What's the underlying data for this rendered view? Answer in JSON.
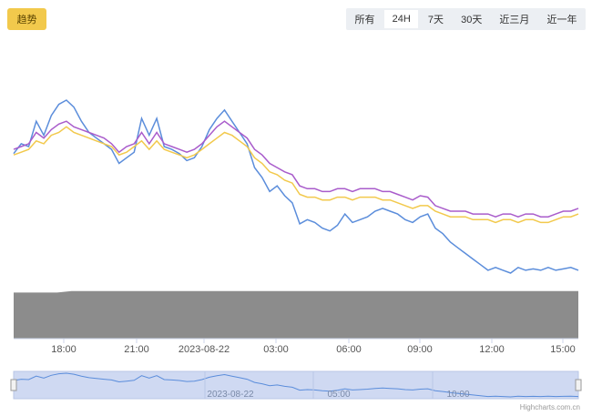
{
  "toolbar": {
    "trend_label": "趋势",
    "ranges": [
      {
        "label": "所有",
        "active": false
      },
      {
        "label": "24H",
        "active": true
      },
      {
        "label": "7天",
        "active": false
      },
      {
        "label": "30天",
        "active": false
      },
      {
        "label": "近三月",
        "active": false
      },
      {
        "label": "近一年",
        "active": false
      }
    ]
  },
  "chart_data": {
    "type": "line",
    "title": "",
    "xlabel": "",
    "ylabel": "",
    "grid": false,
    "x_ticks": [
      "18:00",
      "21:00",
      "2023-08-22",
      "03:00",
      "06:00",
      "09:00",
      "12:00",
      "15:00"
    ],
    "navigator_ticks": [
      "2023-08-22",
      "05:00",
      "10:00"
    ],
    "series": [
      {
        "color": "#5b8ddb",
        "values": [
          55,
          62,
          60,
          78,
          68,
          82,
          90,
          93,
          88,
          78,
          70,
          66,
          62,
          58,
          48,
          52,
          56,
          80,
          68,
          80,
          60,
          58,
          55,
          50,
          52,
          60,
          72,
          80,
          86,
          78,
          70,
          62,
          45,
          38,
          28,
          32,
          25,
          20,
          5,
          8,
          6,
          2,
          0,
          4,
          12,
          6,
          8,
          10,
          14,
          16,
          14,
          12,
          8,
          6,
          10,
          12,
          2,
          -2,
          -8,
          -12,
          -16,
          -20,
          -24,
          -28,
          -26,
          -28,
          -30,
          -26,
          -28,
          -27,
          -28,
          -26,
          -28,
          -27,
          -26,
          -28
        ]
      },
      {
        "color": "#a95ccb",
        "values": [
          58,
          60,
          62,
          70,
          66,
          72,
          76,
          78,
          74,
          72,
          70,
          68,
          66,
          62,
          56,
          60,
          62,
          70,
          62,
          70,
          62,
          60,
          58,
          56,
          58,
          62,
          68,
          74,
          78,
          74,
          70,
          66,
          58,
          54,
          48,
          45,
          42,
          40,
          32,
          30,
          30,
          28,
          28,
          30,
          30,
          28,
          30,
          30,
          30,
          28,
          28,
          26,
          24,
          22,
          25,
          24,
          18,
          16,
          14,
          14,
          14,
          12,
          12,
          12,
          10,
          12,
          12,
          10,
          12,
          12,
          10,
          10,
          12,
          14,
          14,
          16
        ]
      },
      {
        "color": "#f2c94c",
        "values": [
          54,
          56,
          58,
          64,
          62,
          68,
          70,
          74,
          70,
          68,
          66,
          64,
          62,
          60,
          54,
          56,
          60,
          64,
          58,
          64,
          58,
          56,
          54,
          52,
          54,
          58,
          62,
          66,
          70,
          68,
          64,
          60,
          52,
          48,
          42,
          40,
          36,
          34,
          26,
          24,
          24,
          22,
          22,
          24,
          24,
          22,
          24,
          24,
          24,
          22,
          22,
          20,
          18,
          16,
          18,
          18,
          14,
          12,
          10,
          10,
          10,
          8,
          8,
          8,
          6,
          8,
          8,
          6,
          8,
          8,
          6,
          6,
          8,
          10,
          10,
          12
        ]
      }
    ],
    "volume": [
      30,
      30,
      30,
      30,
      31,
      31,
      31,
      31,
      31,
      31,
      31,
      31,
      31,
      31,
      31,
      31,
      31,
      31,
      31,
      31,
      31,
      31,
      31,
      31,
      31,
      31,
      31,
      31,
      31,
      31,
      31,
      31,
      31,
      31,
      31,
      31,
      31,
      31,
      31,
      31
    ]
  }
}
